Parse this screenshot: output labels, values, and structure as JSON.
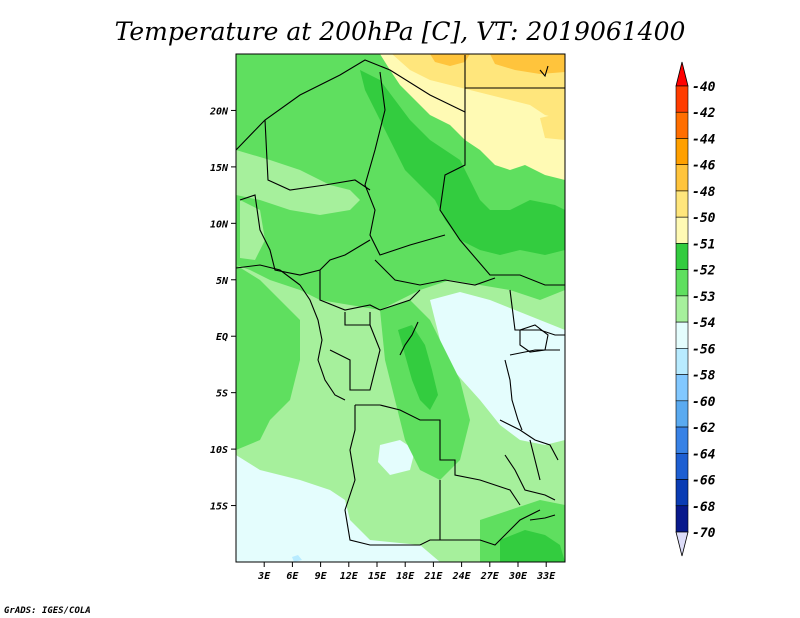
{
  "chart_data": {
    "type": "heatmap",
    "title": "Temperature at 200hPa [C], VT: 2019061400",
    "xlabel": "",
    "ylabel": "",
    "xlim": [
      0,
      35
    ],
    "ylim": [
      -20,
      25
    ],
    "x_ticks": [
      3,
      6,
      9,
      12,
      15,
      18,
      21,
      24,
      27,
      30,
      33
    ],
    "x_tick_labels": [
      "3E",
      "6E",
      "9E",
      "12E",
      "15E",
      "18E",
      "21E",
      "24E",
      "27E",
      "30E",
      "33E"
    ],
    "y_ticks": [
      20,
      15,
      10,
      5,
      0,
      -5,
      -10,
      -15
    ],
    "y_tick_labels": [
      "20N",
      "15N",
      "10N",
      "5N",
      "EQ",
      "5S",
      "10S",
      "15S"
    ],
    "colorbar": {
      "labels": [
        "-40",
        "-42",
        "-44",
        "-46",
        "-48",
        "-50",
        "-51",
        "-52",
        "-53",
        "-54",
        "-56",
        "-58",
        "-60",
        "-62",
        "-64",
        "-66",
        "-68",
        "-70"
      ],
      "colors": [
        "#ff0000",
        "#ff3c00",
        "#ff6e00",
        "#ffa000",
        "#ffc43c",
        "#ffe67c",
        "#fffab4",
        "#33cc3f",
        "#5fdf5f",
        "#a6f09c",
        "#e4fdfd",
        "#b8ebff",
        "#82c8ff",
        "#5aaaf0",
        "#3882e6",
        "#1e5fd2",
        "#0a3cb4",
        "#08198c",
        "#dcdcf8"
      ]
    },
    "temperature_classes": [
      {
        "name": "-51 to -50",
        "color": "#fffab4"
      },
      {
        "name": "-50 to -48",
        "color": "#ffe67c"
      },
      {
        "name": "-48 to -46",
        "color": "#ffc43c"
      },
      {
        "name": "-52 to -51",
        "color": "#33cc3f"
      },
      {
        "name": "-53 to -52",
        "color": "#5fdf5f"
      },
      {
        "name": "-54 to -53",
        "color": "#a6f09c"
      },
      {
        "name": "-56 to -54",
        "color": "#e4fdfd"
      },
      {
        "name": "-58 to -56",
        "color": "#b8ebff"
      }
    ]
  },
  "credit": "GrADS: IGES/COLA"
}
